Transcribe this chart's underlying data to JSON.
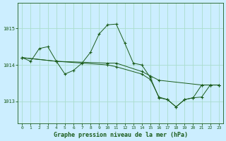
{
  "title": "Graphe pression niveau de la mer (hPa)",
  "bg_color": "#cceeff",
  "grid_color": "#aaddcc",
  "line_color": "#1a5c1a",
  "xlim": [
    -0.5,
    23.5
  ],
  "ylim": [
    1012.4,
    1015.7
  ],
  "yticks": [
    1013,
    1014,
    1015
  ],
  "xticks": [
    0,
    1,
    2,
    3,
    4,
    5,
    6,
    7,
    8,
    9,
    10,
    11,
    12,
    13,
    14,
    15,
    16,
    17,
    18,
    19,
    20,
    21,
    22,
    23
  ],
  "series": [
    {
      "x": [
        0,
        1,
        2,
        3,
        4,
        5,
        6,
        7,
        8,
        9,
        10,
        11,
        12,
        13,
        14,
        15,
        16,
        17,
        18,
        19,
        20,
        21,
        22,
        23
      ],
      "y": [
        1014.2,
        1014.1,
        1014.45,
        1014.5,
        1014.1,
        1013.75,
        1013.85,
        1014.05,
        1014.35,
        1014.85,
        1015.1,
        1015.12,
        1014.6,
        1014.05,
        1014.0,
        1013.65,
        1013.1,
        1013.05,
        1012.85,
        1013.05,
        1013.1,
        1013.45,
        1013.45,
        1013.45
      ]
    },
    {
      "x": [
        0,
        4,
        10,
        11,
        14,
        15,
        16,
        21,
        22,
        23
      ],
      "y": [
        1014.2,
        1014.1,
        1014.05,
        1014.05,
        1013.82,
        1013.7,
        1013.58,
        1013.45,
        1013.45,
        1013.45
      ]
    },
    {
      "x": [
        0,
        4,
        10,
        11,
        14,
        15,
        16,
        17,
        18,
        19,
        20,
        21,
        22,
        23
      ],
      "y": [
        1014.2,
        1014.1,
        1014.0,
        1013.95,
        1013.75,
        1013.6,
        1013.12,
        1013.05,
        1012.85,
        1013.05,
        1013.1,
        1013.12,
        1013.45,
        1013.45
      ]
    }
  ]
}
